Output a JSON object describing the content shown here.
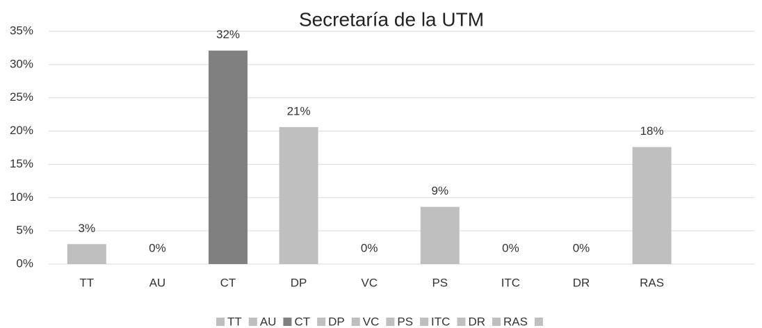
{
  "chart_data": {
    "type": "bar",
    "title": "Secretaría de la UTM",
    "categories": [
      "TT",
      "AU",
      "CT",
      "DP",
      "VC",
      "PS",
      "ITC",
      "DR",
      "RAS",
      null
    ],
    "values": [
      3,
      0,
      32.1,
      20.6,
      0,
      8.6,
      0,
      0,
      17.6,
      null
    ],
    "value_labels": [
      "3%",
      "0%",
      "32%",
      "21%",
      "0%",
      "9%",
      "0%",
      "0%",
      "18%",
      null
    ],
    "colors": [
      "#bfbfbf",
      "#bfbfbf",
      "#808080",
      "#bfbfbf",
      "#bfbfbf",
      "#bfbfbf",
      "#bfbfbf",
      "#bfbfbf",
      "#bfbfbf",
      "#bfbfbf"
    ],
    "ylim": [
      0,
      35
    ],
    "yticks": [
      {
        "value": 0,
        "label": "0%"
      },
      {
        "value": 5,
        "label": "5%"
      },
      {
        "value": 10,
        "label": "10%"
      },
      {
        "value": 15,
        "label": "15%"
      },
      {
        "value": 20,
        "label": "20%"
      },
      {
        "value": 25,
        "label": "25%"
      },
      {
        "value": 30,
        "label": "30%"
      },
      {
        "value": 35,
        "label": "35%"
      }
    ],
    "grid": true,
    "legend": "bottom"
  }
}
